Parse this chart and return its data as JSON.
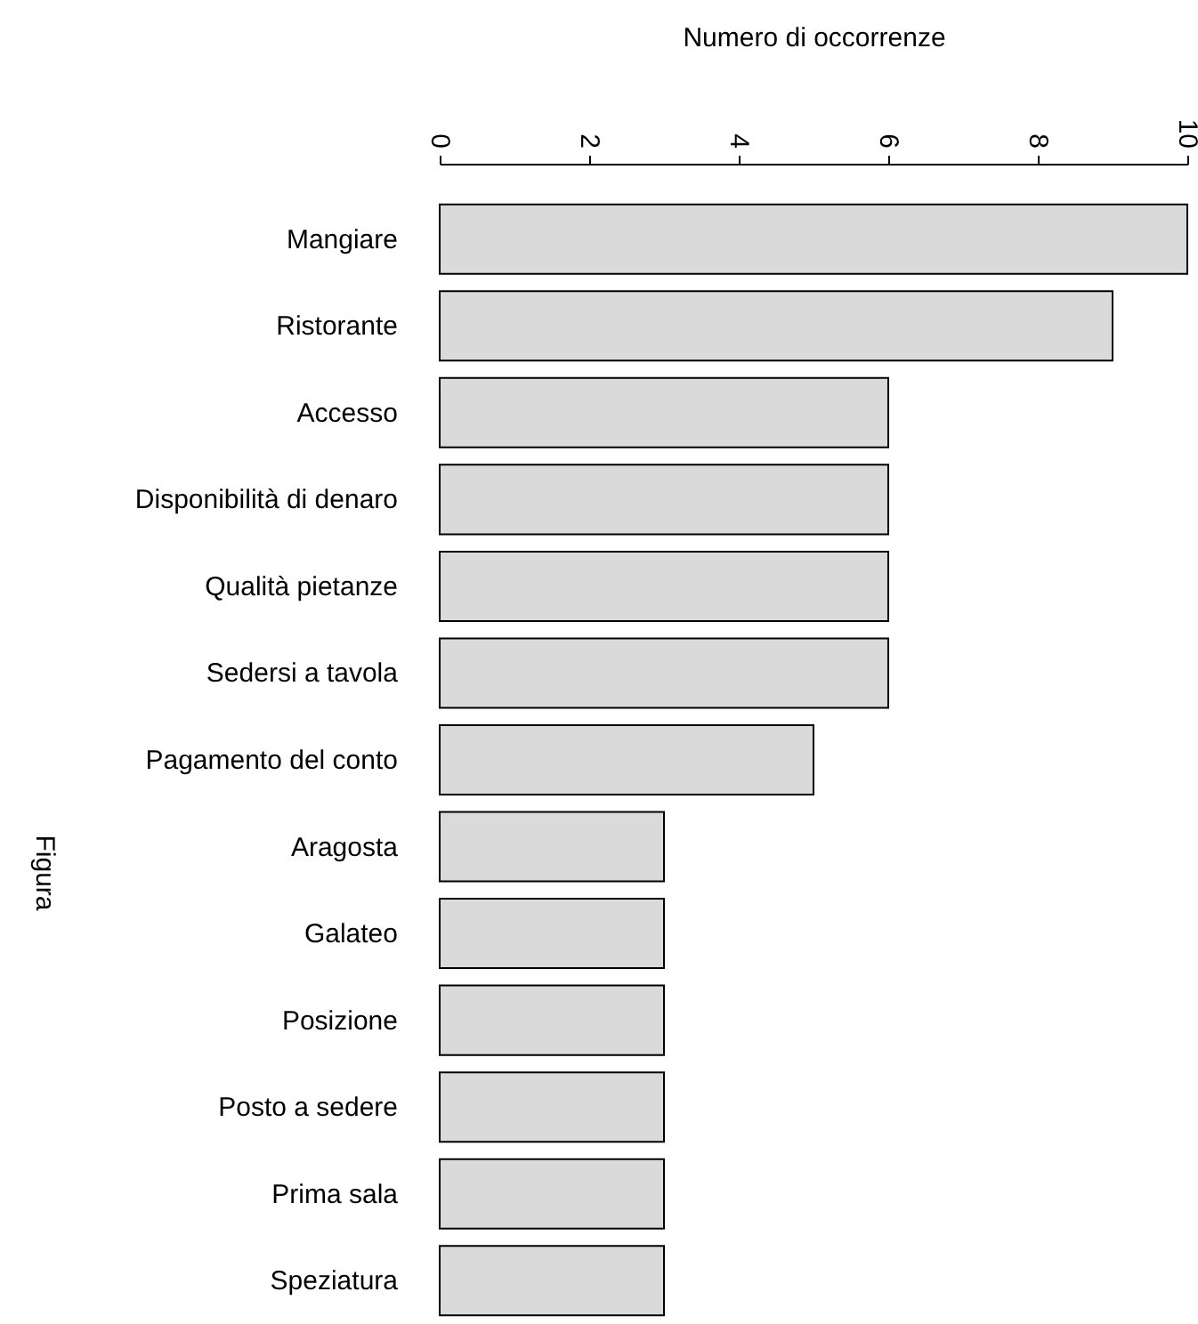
{
  "chart_data": {
    "type": "bar",
    "orientation": "horizontal",
    "xlabel": "Numero di occorrenze",
    "ylabel": "Figura",
    "categories": [
      "Mangiare",
      "Ristorante",
      "Accesso",
      "Disponibilità di denaro",
      "Qualità pietanze",
      "Sedersi a tavola",
      "Pagamento del conto",
      "Aragosta",
      "Galateo",
      "Posizione",
      "Posto a sedere",
      "Prima sala",
      "Speziatura"
    ],
    "values": [
      10,
      9,
      6,
      6,
      6,
      6,
      5,
      3,
      3,
      3,
      3,
      3,
      3
    ],
    "color": "#dadada",
    "xlim": [
      0,
      10
    ],
    "xticks": [
      0,
      2,
      4,
      6,
      8,
      10
    ],
    "grid": false
  }
}
